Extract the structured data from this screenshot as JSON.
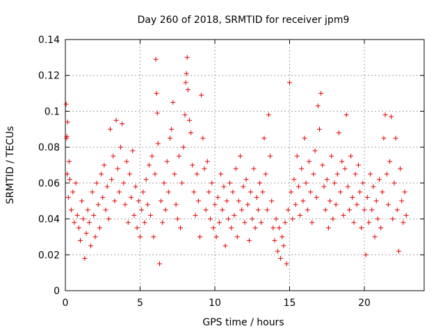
{
  "chart_data": {
    "type": "scatter",
    "title": "Day 260 of 2018, SRMTID for receiver jpm9",
    "xlabel": "GPS time / hours",
    "ylabel": "SRMTID / TECUs",
    "xlim": [
      0,
      24
    ],
    "ylim": [
      0,
      0.14
    ],
    "xticks": [
      0,
      5,
      10,
      15,
      20
    ],
    "yticks": [
      0,
      0.02,
      0.04,
      0.06,
      0.08,
      0.1,
      0.12,
      0.14
    ],
    "xtick_labels": [
      "0",
      "5",
      "10",
      "15",
      "20"
    ],
    "ytick_labels": [
      "0",
      "0.02",
      "0.04",
      "0.06",
      "0.08",
      "0.1",
      "0.12",
      "0.14"
    ],
    "grid": true,
    "marker": "+",
    "series": [
      {
        "name": "SRMTID",
        "color": "#e00000",
        "points": [
          [
            0.05,
            0.104
          ],
          [
            0.08,
            0.085
          ],
          [
            0.1,
            0.086
          ],
          [
            0.12,
            0.065
          ],
          [
            0.15,
            0.094
          ],
          [
            0.2,
            0.052
          ],
          [
            0.25,
            0.072
          ],
          [
            0.3,
            0.062
          ],
          [
            0.4,
            0.045
          ],
          [
            0.5,
            0.055
          ],
          [
            0.6,
            0.038
          ],
          [
            0.7,
            0.06
          ],
          [
            0.8,
            0.042
          ],
          [
            0.9,
            0.035
          ],
          [
            1.0,
            0.028
          ],
          [
            1.1,
            0.05
          ],
          [
            1.2,
            0.04
          ],
          [
            1.3,
            0.018
          ],
          [
            1.4,
            0.032
          ],
          [
            1.5,
            0.045
          ],
          [
            1.6,
            0.038
          ],
          [
            1.7,
            0.025
          ],
          [
            1.8,
            0.055
          ],
          [
            1.9,
            0.042
          ],
          [
            2.0,
            0.03
          ],
          [
            2.1,
            0.06
          ],
          [
            2.2,
            0.048
          ],
          [
            2.3,
            0.035
          ],
          [
            2.4,
            0.065
          ],
          [
            2.5,
            0.052
          ],
          [
            2.6,
            0.07
          ],
          [
            2.7,
            0.045
          ],
          [
            2.8,
            0.058
          ],
          [
            2.9,
            0.04
          ],
          [
            3.0,
            0.09
          ],
          [
            3.1,
            0.062
          ],
          [
            3.2,
            0.075
          ],
          [
            3.3,
            0.05
          ],
          [
            3.4,
            0.095
          ],
          [
            3.5,
            0.068
          ],
          [
            3.6,
            0.055
          ],
          [
            3.7,
            0.08
          ],
          [
            3.8,
            0.093
          ],
          [
            3.9,
            0.06
          ],
          [
            4.0,
            0.048
          ],
          [
            4.1,
            0.072
          ],
          [
            4.2,
            0.038
          ],
          [
            4.3,
            0.065
          ],
          [
            4.4,
            0.052
          ],
          [
            4.5,
            0.078
          ],
          [
            4.6,
            0.042
          ],
          [
            4.7,
            0.058
          ],
          [
            4.8,
            0.035
          ],
          [
            4.9,
            0.05
          ],
          [
            5.0,
            0.03
          ],
          [
            5.1,
            0.045
          ],
          [
            5.2,
            0.055
          ],
          [
            5.3,
            0.038
          ],
          [
            5.4,
            0.062
          ],
          [
            5.5,
            0.048
          ],
          [
            5.6,
            0.07
          ],
          [
            5.7,
            0.042
          ],
          [
            5.8,
            0.075
          ],
          [
            5.9,
            0.03
          ],
          [
            6.0,
            0.065
          ],
          [
            6.05,
            0.129
          ],
          [
            6.1,
            0.11
          ],
          [
            6.15,
            0.099
          ],
          [
            6.2,
            0.082
          ],
          [
            6.3,
            0.015
          ],
          [
            6.4,
            0.05
          ],
          [
            6.5,
            0.038
          ],
          [
            6.6,
            0.06
          ],
          [
            6.7,
            0.045
          ],
          [
            6.8,
            0.072
          ],
          [
            6.9,
            0.055
          ],
          [
            7.0,
            0.085
          ],
          [
            7.1,
            0.09
          ],
          [
            7.2,
            0.105
          ],
          [
            7.3,
            0.065
          ],
          [
            7.4,
            0.048
          ],
          [
            7.5,
            0.04
          ],
          [
            7.6,
            0.075
          ],
          [
            7.7,
            0.035
          ],
          [
            7.8,
            0.06
          ],
          [
            7.9,
            0.08
          ],
          [
            8.0,
            0.098
          ],
          [
            8.05,
            0.116
          ],
          [
            8.1,
            0.121
          ],
          [
            8.15,
            0.13
          ],
          [
            8.2,
            0.112
          ],
          [
            8.3,
            0.095
          ],
          [
            8.4,
            0.088
          ],
          [
            8.5,
            0.07
          ],
          [
            8.6,
            0.055
          ],
          [
            8.7,
            0.042
          ],
          [
            8.8,
            0.065
          ],
          [
            8.9,
            0.05
          ],
          [
            9.0,
            0.03
          ],
          [
            9.1,
            0.109
          ],
          [
            9.2,
            0.085
          ],
          [
            9.3,
            0.068
          ],
          [
            9.4,
            0.045
          ],
          [
            9.5,
            0.072
          ],
          [
            9.6,
            0.055
          ],
          [
            9.7,
            0.04
          ],
          [
            9.8,
            0.06
          ],
          [
            9.9,
            0.035
          ],
          [
            10.0,
            0.048
          ],
          [
            10.1,
            0.03
          ],
          [
            10.2,
            0.052
          ],
          [
            10.3,
            0.038
          ],
          [
            10.4,
            0.065
          ],
          [
            10.5,
            0.045
          ],
          [
            10.6,
            0.058
          ],
          [
            10.7,
            0.025
          ],
          [
            10.8,
            0.05
          ],
          [
            10.9,
            0.04
          ],
          [
            11.0,
            0.06
          ],
          [
            11.1,
            0.035
          ],
          [
            11.2,
            0.055
          ],
          [
            11.3,
            0.042
          ],
          [
            11.4,
            0.068
          ],
          [
            11.5,
            0.03
          ],
          [
            11.6,
            0.05
          ],
          [
            11.7,
            0.075
          ],
          [
            11.8,
            0.045
          ],
          [
            11.9,
            0.058
          ],
          [
            12.0,
            0.038
          ],
          [
            12.1,
            0.062
          ],
          [
            12.2,
            0.048
          ],
          [
            12.3,
            0.028
          ],
          [
            12.4,
            0.055
          ],
          [
            12.5,
            0.04
          ],
          [
            12.6,
            0.068
          ],
          [
            12.7,
            0.035
          ],
          [
            12.8,
            0.052
          ],
          [
            12.9,
            0.045
          ],
          [
            13.0,
            0.06
          ],
          [
            13.1,
            0.038
          ],
          [
            13.2,
            0.055
          ],
          [
            13.3,
            0.085
          ],
          [
            13.4,
            0.065
          ],
          [
            13.5,
            0.045
          ],
          [
            13.6,
            0.098
          ],
          [
            13.7,
            0.075
          ],
          [
            13.8,
            0.05
          ],
          [
            13.9,
            0.035
          ],
          [
            14.0,
            0.028
          ],
          [
            14.1,
            0.04
          ],
          [
            14.2,
            0.022
          ],
          [
            14.3,
            0.035
          ],
          [
            14.4,
            0.018
          ],
          [
            14.5,
            0.03
          ],
          [
            14.6,
            0.025
          ],
          [
            14.7,
            0.038
          ],
          [
            14.8,
            0.015
          ],
          [
            14.9,
            0.045
          ],
          [
            15.0,
            0.116
          ],
          [
            15.1,
            0.055
          ],
          [
            15.2,
            0.04
          ],
          [
            15.3,
            0.062
          ],
          [
            15.4,
            0.048
          ],
          [
            15.5,
            0.075
          ],
          [
            15.6,
            0.058
          ],
          [
            15.7,
            0.042
          ],
          [
            15.8,
            0.068
          ],
          [
            15.9,
            0.05
          ],
          [
            16.0,
            0.085
          ],
          [
            16.1,
            0.06
          ],
          [
            16.2,
            0.045
          ],
          [
            16.3,
            0.072
          ],
          [
            16.4,
            0.055
          ],
          [
            16.5,
            0.038
          ],
          [
            16.6,
            0.065
          ],
          [
            16.7,
            0.078
          ],
          [
            16.8,
            0.052
          ],
          [
            16.9,
            0.103
          ],
          [
            17.0,
            0.09
          ],
          [
            17.1,
            0.11
          ],
          [
            17.2,
            0.07
          ],
          [
            17.3,
            0.058
          ],
          [
            17.4,
            0.045
          ],
          [
            17.5,
            0.062
          ],
          [
            17.6,
            0.035
          ],
          [
            17.7,
            0.05
          ],
          [
            17.8,
            0.075
          ],
          [
            17.9,
            0.04
          ],
          [
            18.0,
            0.06
          ],
          [
            18.1,
            0.048
          ],
          [
            18.2,
            0.065
          ],
          [
            18.3,
            0.088
          ],
          [
            18.4,
            0.055
          ],
          [
            18.5,
            0.072
          ],
          [
            18.6,
            0.042
          ],
          [
            18.7,
            0.068
          ],
          [
            18.8,
            0.098
          ],
          [
            18.9,
            0.058
          ],
          [
            19.0,
            0.045
          ],
          [
            19.1,
            0.075
          ],
          [
            19.2,
            0.052
          ],
          [
            19.3,
            0.038
          ],
          [
            19.4,
            0.065
          ],
          [
            19.5,
            0.048
          ],
          [
            19.6,
            0.07
          ],
          [
            19.7,
            0.055
          ],
          [
            19.8,
            0.035
          ],
          [
            19.9,
            0.06
          ],
          [
            20.0,
            0.045
          ],
          [
            20.1,
            0.02
          ],
          [
            20.2,
            0.052
          ],
          [
            20.3,
            0.038
          ],
          [
            20.4,
            0.065
          ],
          [
            20.5,
            0.045
          ],
          [
            20.6,
            0.058
          ],
          [
            20.7,
            0.03
          ],
          [
            20.8,
            0.05
          ],
          [
            20.9,
            0.04
          ],
          [
            21.0,
            0.062
          ],
          [
            21.1,
            0.035
          ],
          [
            21.2,
            0.055
          ],
          [
            21.3,
            0.085
          ],
          [
            21.4,
            0.098
          ],
          [
            21.5,
            0.065
          ],
          [
            21.6,
            0.048
          ],
          [
            21.7,
            0.072
          ],
          [
            21.8,
            0.097
          ],
          [
            21.9,
            0.04
          ],
          [
            22.0,
            0.06
          ],
          [
            22.1,
            0.085
          ],
          [
            22.2,
            0.045
          ],
          [
            22.3,
            0.022
          ],
          [
            22.4,
            0.068
          ],
          [
            22.5,
            0.05
          ],
          [
            22.6,
            0.038
          ],
          [
            22.7,
            0.055
          ],
          [
            22.8,
            0.042
          ]
        ]
      }
    ]
  }
}
